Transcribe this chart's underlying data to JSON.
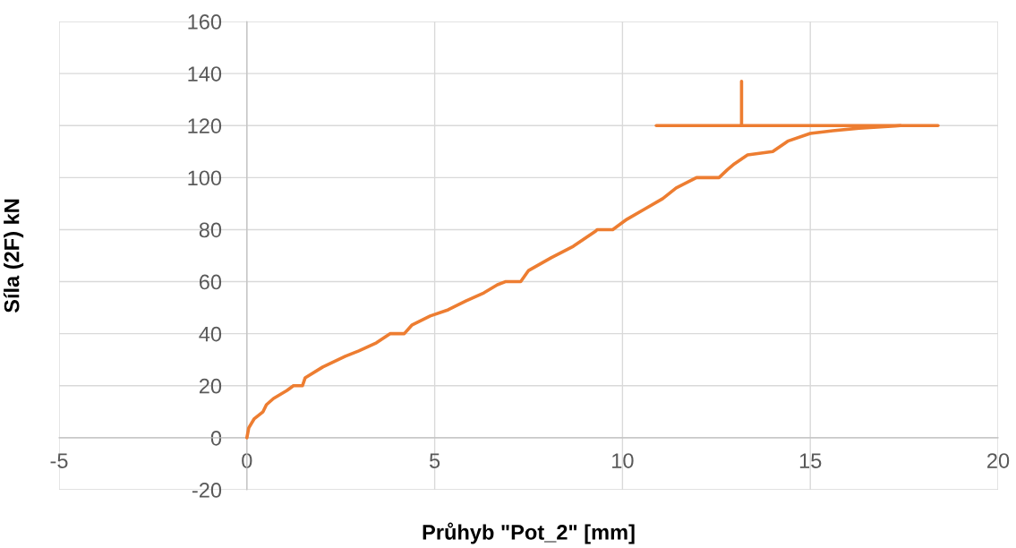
{
  "chart_data": {
    "type": "line",
    "xlabel": "Průhyb \"Pot_2\" [mm]",
    "ylabel": "Síla (2F) kN",
    "xlim": [
      -5,
      20
    ],
    "xticks": [
      -5,
      0,
      5,
      10,
      15,
      20
    ],
    "ylim": [
      -20,
      160
    ],
    "yticks": [
      -20,
      0,
      20,
      40,
      60,
      80,
      100,
      120,
      140,
      160
    ],
    "grid": true,
    "marker": "none",
    "line_style": "solid",
    "series": [
      {
        "color": "#ed7d31",
        "x": [
          0,
          0.05,
          0.19,
          0.43,
          0.52,
          0.71,
          1.07,
          1.24,
          1.48,
          1.55,
          2.02,
          2.62,
          2.98,
          3.45,
          3.81,
          4.19,
          4.4,
          4.88,
          5.36,
          5.83,
          6.31,
          6.67,
          6.88,
          7.29,
          7.5,
          8.1,
          8.69,
          9.29,
          9.33,
          9.74,
          10.12,
          10.6,
          11.07,
          11.43,
          11.97,
          12.57,
          12.79,
          12.98,
          13.33,
          14.0,
          14.4,
          15.0,
          15.6,
          16.3,
          17.26,
          17.4
        ],
        "values": [
          0,
          3.8,
          7.2,
          10,
          12.7,
          15.1,
          18.2,
          20,
          20,
          23,
          27.2,
          31.3,
          33.4,
          36.5,
          40,
          40,
          43.4,
          46.8,
          49.2,
          52.6,
          55.7,
          58.8,
          60,
          60,
          64.3,
          69.2,
          73.6,
          79.5,
          80,
          80,
          84,
          88,
          91.9,
          96,
          100,
          100,
          103,
          105.3,
          108.7,
          110,
          114,
          117,
          118,
          119,
          119.8,
          120
        ]
      },
      {
        "color": "#ed7d31",
        "x": [
          10.9,
          18.4
        ],
        "values": [
          120,
          120
        ]
      },
      {
        "color": "#ed7d31",
        "x": [
          13.17,
          13.17
        ],
        "values": [
          120,
          137
        ]
      }
    ]
  }
}
